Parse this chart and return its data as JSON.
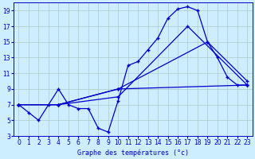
{
  "title": "Graphe des températures (°c)",
  "bg_color": "#cceeff",
  "line_color": "#0000cc",
  "xlim": [
    -0.5,
    23.5
  ],
  "ylim": [
    3,
    20
  ],
  "xticks": [
    0,
    1,
    2,
    3,
    4,
    5,
    6,
    7,
    8,
    9,
    10,
    11,
    12,
    13,
    14,
    15,
    16,
    17,
    18,
    19,
    20,
    21,
    22,
    23
  ],
  "yticks": [
    3,
    5,
    7,
    9,
    11,
    13,
    15,
    17,
    19
  ],
  "grid_color": "#aacccc",
  "series1_x": [
    0,
    1,
    2,
    3,
    4,
    5,
    6,
    7,
    8,
    9,
    10,
    11,
    12,
    13,
    14,
    15,
    16,
    17,
    18,
    19,
    20,
    21,
    22,
    23
  ],
  "series1_y": [
    7,
    6,
    5,
    7,
    9,
    7,
    6.5,
    6.5,
    4,
    3.5,
    7.5,
    12,
    12.5,
    14,
    15.5,
    18,
    19.2,
    19.5,
    19,
    15,
    13,
    10.5,
    9.5,
    9.5
  ],
  "series2_x": [
    0,
    4,
    10,
    17,
    23
  ],
  "series2_y": [
    7,
    7,
    8,
    17,
    9.5
  ],
  "series3_x": [
    0,
    4,
    10,
    19,
    23
  ],
  "series3_y": [
    7,
    7,
    9,
    15,
    10
  ],
  "series4_x": [
    0,
    4,
    10,
    23
  ],
  "series4_y": [
    7,
    7,
    9,
    9.5
  ]
}
